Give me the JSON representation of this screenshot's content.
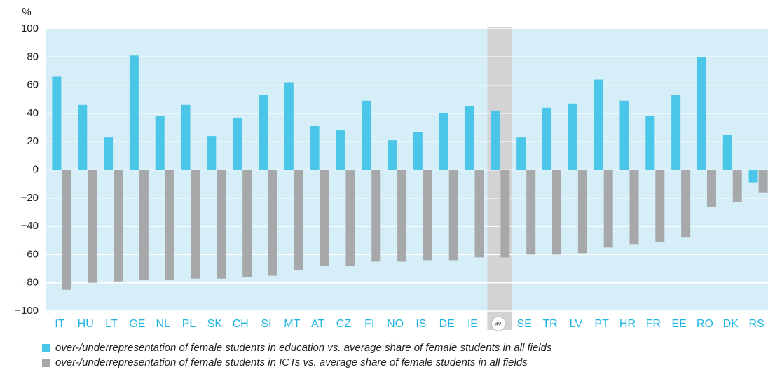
{
  "chart_data": {
    "type": "bar",
    "y_unit": "%",
    "categories": [
      "IT",
      "HU",
      "LT",
      "GE",
      "NL",
      "PL",
      "SK",
      "CH",
      "SI",
      "MT",
      "AT",
      "CZ",
      "FI",
      "NO",
      "IS",
      "DE",
      "IE",
      "av.",
      "SE",
      "TR",
      "LV",
      "PT",
      "HR",
      "FR",
      "EE",
      "RO",
      "DK",
      "RS"
    ],
    "series": [
      {
        "name": "over-/underrepresentation of female students in education vs. average share of female students in all fields",
        "color": "#4ac6e8",
        "values": [
          66,
          46,
          23,
          81,
          38,
          46,
          24,
          37,
          53,
          62,
          31,
          28,
          49,
          21,
          27,
          40,
          45,
          42,
          23,
          44,
          47,
          64,
          49,
          38,
          53,
          80,
          25,
          -9
        ]
      },
      {
        "name": "over-/underrepresentation of female students in ICTs vs. average share of female students in all fields",
        "color": "#a7a8aa",
        "values": [
          -85,
          -80,
          -79,
          -78,
          -78,
          -77,
          -77,
          -76,
          -75,
          -71,
          -68,
          -68,
          -65,
          -65,
          -64,
          -64,
          -62,
          -62,
          -60,
          -60,
          -59,
          -55,
          -53,
          -51,
          -48,
          -26,
          -23,
          -16
        ]
      }
    ],
    "ylim": [
      -100,
      100
    ],
    "yticks": [
      {
        "value": -100,
        "label": "−100"
      },
      {
        "value": -80,
        "label": "−80"
      },
      {
        "value": -60,
        "label": "−60"
      },
      {
        "value": -40,
        "label": "−40"
      },
      {
        "value": -20,
        "label": "−20"
      },
      0,
      20,
      40,
      60,
      80,
      100
    ],
    "grid": true,
    "plot_background": "#d5eef7",
    "highlight_category_index": 17,
    "highlight_color": "#d3d3d5"
  }
}
